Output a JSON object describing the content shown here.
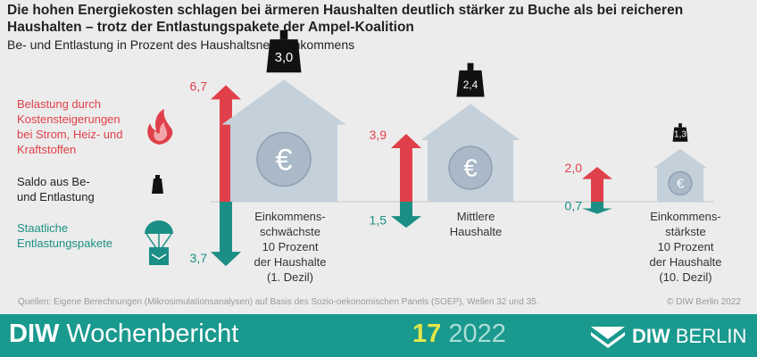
{
  "header": {
    "title": "Die hohen Energiekosten schlagen bei ärmeren Haushalten deutlich stärker zu Buche als bei reicheren Haushalten – trotz der Entlastungspakete der Ampel-Koalition",
    "subtitle": "Be- und Entlastung in Prozent des Haushaltsnettoeinkommens"
  },
  "legend": {
    "burden": "Belastung durch Kostensteigerungen bei Strom, Heiz- und Kraftstoffen",
    "saldo": "Saldo aus Be- und Entlastung",
    "relief": "Staatliche Entlastungspakete"
  },
  "colors": {
    "burden": "#e0404a",
    "relief": "#1b8f85",
    "house": "#c4d0da",
    "house_coin": "#a9b9c7",
    "weight": "#111111",
    "background": "#ececec",
    "footer": "#1a998e"
  },
  "chart_data": {
    "type": "bar",
    "categories": [
      "Einkommens-\nschwächste\n10 Prozent\nder Haushalte\n(1. Dezil)",
      "Mittlere\nHaushalte",
      "Einkommens-\nstärkste\n10 Prozent\nder Haushalte\n(10. Dezil)"
    ],
    "series": [
      {
        "values": [
          6.7,
          3.9,
          2.0
        ]
      },
      {
        "values": [
          3.7,
          1.5,
          0.7
        ]
      },
      {
        "values": [
          3.0,
          2.4,
          1.3
        ]
      }
    ],
    "value_labels": {
      "burden": [
        "6,7",
        "3,9",
        "2,0"
      ],
      "relief": [
        "3,7",
        "1,5",
        "0,7"
      ],
      "saldo": [
        "3,0",
        "2,4",
        "1,3"
      ]
    }
  },
  "footer": {
    "source": "Quellen: Eigene Berechnungen (Mikrosimulationsanalysen) auf Basis des Sozio-oekonomischen Panels (SOEP), Wellen 32 und 35.",
    "copyright": "© DIW Berlin 2022",
    "brand_bold": "DIW",
    "brand_rest": " Wochenbericht",
    "issue_number": "17",
    "issue_year": " 2022",
    "logo_bold": "DIW",
    "logo_rest": " BERLIN"
  }
}
